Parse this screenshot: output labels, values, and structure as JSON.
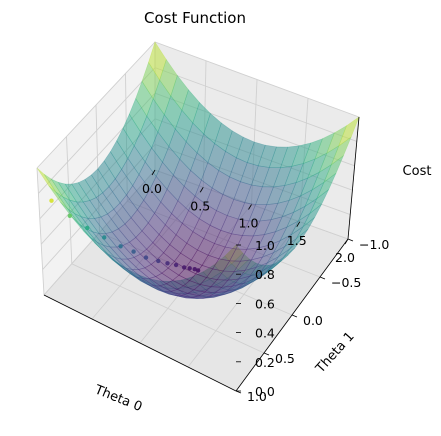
{
  "chart_data": {
    "type": "surface",
    "title": "Cost Function",
    "xlabel": "Theta 0",
    "ylabel": "Theta 1",
    "zlabel": "Cost",
    "xlim": [
      0.0,
      2.0
    ],
    "ylim": [
      -1.0,
      1.0
    ],
    "zlim": [
      0.0,
      1.0
    ],
    "x_ticks": [
      "0.0",
      "0.5",
      "1.0",
      "1.5",
      "2.0"
    ],
    "y_ticks": [
      "−1.0",
      "−0.5",
      "0.0",
      "0.5",
      "1.0"
    ],
    "z_ticks": [
      "0.0",
      "0.2",
      "0.4",
      "0.6",
      "0.8",
      "1.0"
    ],
    "grid": true,
    "colormap": "viridis",
    "surface_alpha": 0.5,
    "path_points": {
      "theta0": [
        0.1,
        0.2,
        0.3,
        0.4,
        0.5,
        0.58,
        0.66,
        0.74,
        0.8,
        0.86,
        0.92,
        0.96,
        1.0,
        1.03
      ],
      "theta1": [
        0.95,
        0.82,
        0.7,
        0.58,
        0.47,
        0.38,
        0.3,
        0.22,
        0.16,
        0.11,
        0.07,
        0.04,
        0.02,
        0.01
      ],
      "cost": [
        0.75,
        0.6,
        0.48,
        0.38,
        0.29,
        0.23,
        0.17,
        0.13,
        0.1,
        0.08,
        0.06,
        0.05,
        0.045,
        0.04
      ]
    }
  }
}
